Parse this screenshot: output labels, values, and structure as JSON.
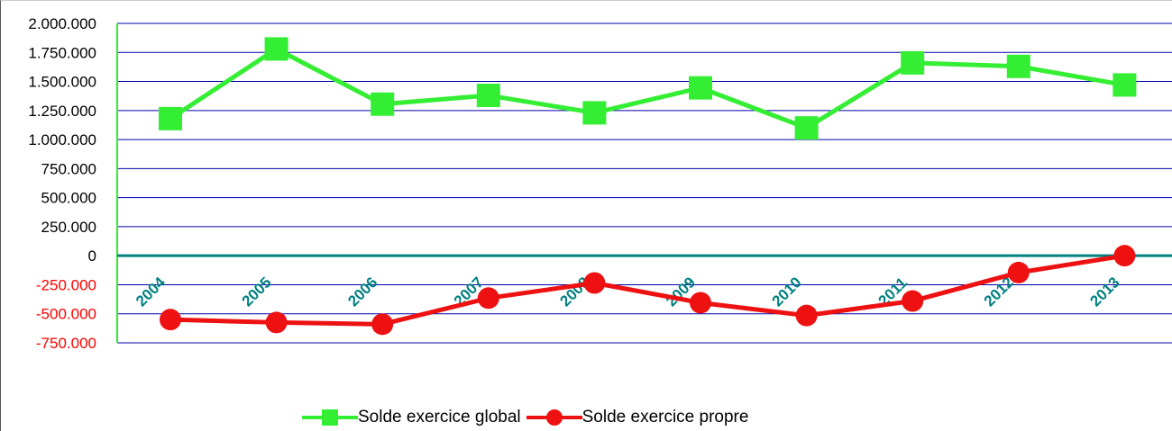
{
  "chart_data": {
    "type": "line",
    "categories": [
      "2004",
      "2005",
      "2006",
      "2007",
      "2008",
      "2009",
      "2010",
      "2011",
      "2012",
      "2013"
    ],
    "series": [
      {
        "name": "Solde exercice global",
        "color": "#33ee33",
        "marker": "square",
        "values": [
          1180000,
          1780000,
          1305000,
          1380000,
          1230000,
          1445000,
          1100000,
          1660000,
          1630000,
          1470000
        ]
      },
      {
        "name": "Solde exercice propre",
        "color": "#ee1111",
        "marker": "circle",
        "values": [
          -550000,
          -575000,
          -590000,
          -365000,
          -235000,
          -405000,
          -515000,
          -390000,
          -145000,
          0
        ]
      }
    ],
    "ylim": [
      -750000,
      2000000
    ],
    "yticks": [
      "2.000.000",
      "1.750.000",
      "1.500.000",
      "1.250.000",
      "1.000.000",
      "750.000",
      "500.000",
      "250.000",
      "0",
      "-250.000",
      "-500.000",
      "-750.000"
    ],
    "ytick_values": [
      2000000,
      1750000,
      1500000,
      1250000,
      1000000,
      750000,
      500000,
      250000,
      0,
      -250000,
      -500000,
      -750000
    ],
    "grid": true,
    "legend_position": "bottom-center",
    "colors": {
      "gridline": "#0000aa",
      "zero_line": "#008080",
      "axis_line": "#33ee33",
      "tick_label_positive": "#000000",
      "tick_label_negative": "#ff0000",
      "category_label": "#008080"
    }
  }
}
